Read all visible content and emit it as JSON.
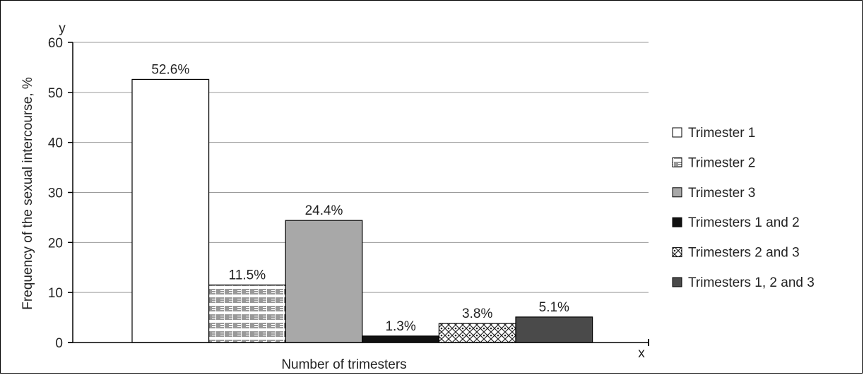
{
  "chart_data": {
    "type": "bar",
    "categories": [
      "Trimester 1",
      "Trimester 2",
      "Trimester 3",
      "Trimesters 1 and 2",
      "Trimesters 2 and 3",
      "Trimesters 1, 2 and 3"
    ],
    "values": [
      52.6,
      11.5,
      24.4,
      1.3,
      3.8,
      5.1
    ],
    "data_labels": [
      "52.6%",
      "11.5%",
      "24.4%",
      "1.3%",
      "3.8%",
      "5.1%"
    ],
    "xlabel": "Number of trimesters",
    "ylabel": "Frequency of the sexual intercourse, %",
    "y_axis_letter": "y",
    "x_axis_letter": "x",
    "ylim": [
      0,
      60
    ],
    "yticks": [
      "0",
      "10",
      "20",
      "30",
      "40",
      "50",
      "60"
    ],
    "grid": true,
    "legend_position": "right",
    "legend": [
      "Trimester 1",
      "Trimester 2",
      "Trimester 3",
      "Trimesters 1 and 2",
      "Trimesters 2 and 3",
      "Trimesters 1, 2 and 3"
    ],
    "fills": [
      "white",
      "hatch-lines",
      "#a8a8a8",
      "#111111",
      "hatch-mesh",
      "#4a4a4a"
    ]
  }
}
